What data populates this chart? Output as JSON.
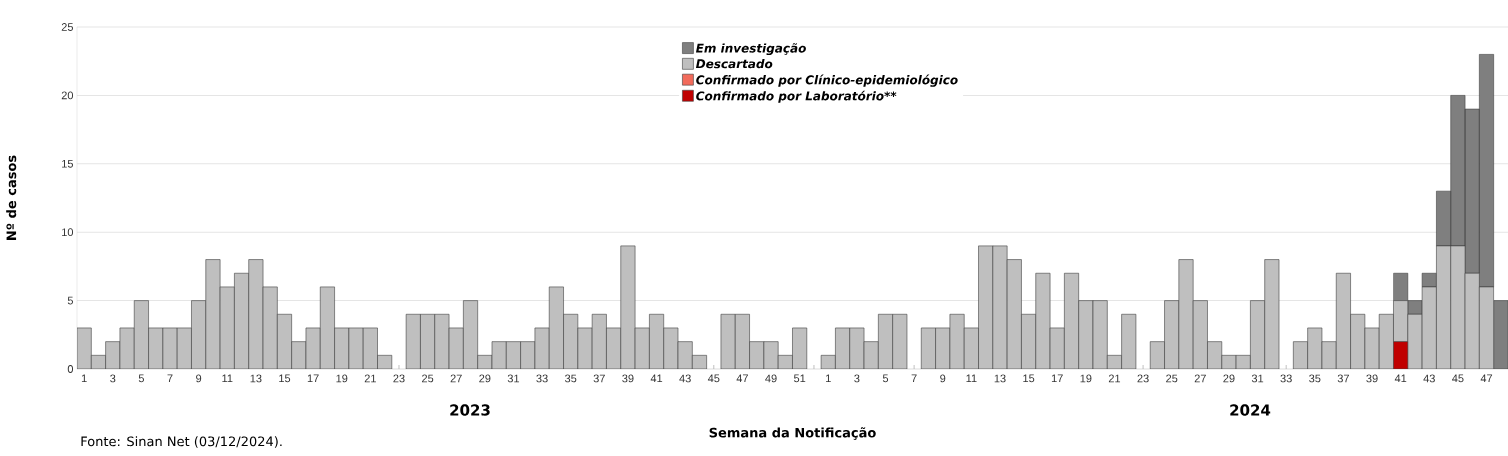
{
  "chart_data": {
    "type": "bar",
    "stacked": true,
    "xlabel": "Semana da Notificação",
    "ylabel": "Nº de casos",
    "categories": [
      "1",
      null,
      "3",
      null,
      "5",
      null,
      "7",
      null,
      "9",
      null,
      "11",
      null,
      "13",
      null,
      "15",
      null,
      "17",
      null,
      "19",
      null,
      "21",
      null,
      "23",
      null,
      "25",
      null,
      "27",
      null,
      "29",
      null,
      "31",
      null,
      "33",
      null,
      "35",
      null,
      "37",
      null,
      "39",
      null,
      "41",
      null,
      "43",
      null,
      "45",
      null,
      "47",
      null,
      "49",
      null,
      "51",
      null,
      "1",
      null,
      "3",
      null,
      "5",
      null,
      "7",
      null,
      "9",
      null,
      "11",
      null,
      "13",
      null,
      "15",
      null,
      "17",
      null,
      "19",
      null,
      "21",
      null,
      "23",
      null,
      "25",
      null,
      "27",
      null,
      "29",
      null,
      "31",
      null,
      "33",
      null,
      "35",
      null,
      "37",
      null,
      "39",
      null,
      "41",
      null,
      "43",
      null,
      "45",
      null,
      "47",
      null
    ],
    "series": [
      {
        "name": "Confirmado por Laboratório**",
        "color": "#c00000",
        "values": [
          0,
          0,
          0,
          0,
          0,
          0,
          0,
          0,
          0,
          0,
          0,
          0,
          0,
          0,
          0,
          0,
          0,
          0,
          0,
          0,
          0,
          0,
          0,
          0,
          0,
          0,
          0,
          0,
          0,
          0,
          0,
          0,
          0,
          0,
          0,
          0,
          0,
          0,
          0,
          0,
          0,
          0,
          0,
          0,
          0,
          0,
          0,
          0,
          0,
          0,
          0,
          0,
          0,
          0,
          0,
          0,
          0,
          0,
          0,
          0,
          0,
          0,
          0,
          0,
          0,
          0,
          0,
          0,
          0,
          0,
          0,
          0,
          0,
          0,
          0,
          0,
          0,
          0,
          0,
          0,
          0,
          0,
          0,
          0,
          0,
          0,
          0,
          0,
          0,
          0,
          0,
          0,
          2,
          0,
          0,
          0,
          0,
          0,
          0,
          0
        ]
      },
      {
        "name": "Confirmado por Clínico-epidemiológico",
        "color": "#f26b5b",
        "values": [
          0,
          0,
          0,
          0,
          0,
          0,
          0,
          0,
          0,
          0,
          0,
          0,
          0,
          0,
          0,
          0,
          0,
          0,
          0,
          0,
          0,
          0,
          0,
          0,
          0,
          0,
          0,
          0,
          0,
          0,
          0,
          0,
          0,
          0,
          0,
          0,
          0,
          0,
          0,
          0,
          0,
          0,
          0,
          0,
          0,
          0,
          0,
          0,
          0,
          0,
          0,
          0,
          0,
          0,
          0,
          0,
          0,
          0,
          0,
          0,
          0,
          0,
          0,
          0,
          0,
          0,
          0,
          0,
          0,
          0,
          0,
          0,
          0,
          0,
          0,
          0,
          0,
          0,
          0,
          0,
          0,
          0,
          0,
          0,
          0,
          0,
          0,
          0,
          0,
          0,
          0,
          0,
          0,
          0,
          0,
          0,
          0,
          0,
          0,
          0
        ]
      },
      {
        "name": "Descartado",
        "color": "#bfbfbf",
        "values": [
          3,
          1,
          2,
          3,
          5,
          3,
          3,
          3,
          5,
          8,
          6,
          7,
          8,
          6,
          4,
          2,
          3,
          6,
          3,
          3,
          3,
          1,
          0,
          4,
          4,
          4,
          3,
          5,
          1,
          2,
          2,
          2,
          3,
          6,
          4,
          3,
          4,
          3,
          9,
          3,
          4,
          3,
          2,
          1,
          0,
          4,
          4,
          2,
          2,
          1,
          3,
          0,
          1,
          3,
          3,
          2,
          4,
          4,
          0,
          3,
          3,
          4,
          3,
          9,
          9,
          8,
          4,
          7,
          3,
          7,
          5,
          5,
          1,
          4,
          0,
          2,
          5,
          8,
          5,
          2,
          1,
          1,
          5,
          8,
          0,
          2,
          3,
          2,
          7,
          4,
          3,
          4,
          3,
          4,
          6,
          9,
          9,
          7,
          6,
          0
        ]
      },
      {
        "name": "Em investigação",
        "color": "#7f7f7f",
        "values": [
          0,
          0,
          0,
          0,
          0,
          0,
          0,
          0,
          0,
          0,
          0,
          0,
          0,
          0,
          0,
          0,
          0,
          0,
          0,
          0,
          0,
          0,
          0,
          0,
          0,
          0,
          0,
          0,
          0,
          0,
          0,
          0,
          0,
          0,
          0,
          0,
          0,
          0,
          0,
          0,
          0,
          0,
          0,
          0,
          0,
          0,
          0,
          0,
          0,
          0,
          0,
          0,
          0,
          0,
          0,
          0,
          0,
          0,
          0,
          0,
          0,
          0,
          0,
          0,
          0,
          0,
          0,
          0,
          0,
          0,
          0,
          0,
          0,
          0,
          0,
          0,
          0,
          0,
          0,
          0,
          0,
          0,
          0,
          0,
          0,
          0,
          0,
          0,
          0,
          0,
          0,
          0,
          2,
          1,
          1,
          4,
          11,
          12,
          17,
          5
        ]
      }
    ],
    "ylim": [
      0,
      25
    ],
    "yticks": [
      0,
      5,
      10,
      15,
      20,
      25
    ],
    "grid": "y",
    "legend": "top",
    "annotations": [
      "2023",
      "2024",
      "Fonte: Sinan Net (03/12/2024)."
    ]
  }
}
